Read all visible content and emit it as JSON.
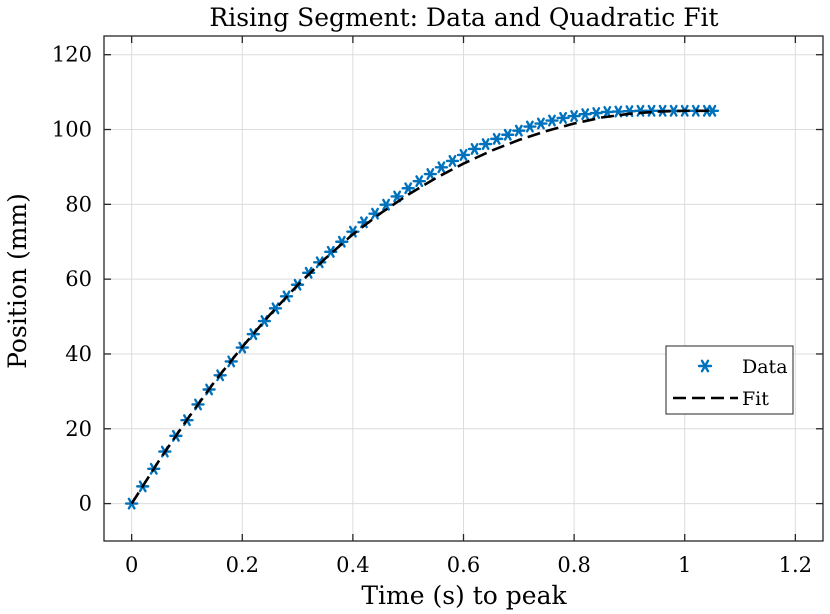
{
  "chart_data": {
    "type": "line",
    "title": "Rising Segment: Data and Quadratic Fit",
    "xlabel": "Time (s) to peak",
    "ylabel": "Position (mm)",
    "xlim": [
      -0.05,
      1.25
    ],
    "ylim": [
      -10,
      125
    ],
    "xticks": [
      0,
      0.2,
      0.4,
      0.6,
      0.8,
      1,
      1.2
    ],
    "xtick_labels": [
      "0",
      "0.2",
      "0.4",
      "0.6",
      "0.8",
      "1",
      "1.2"
    ],
    "yticks": [
      0,
      20,
      40,
      60,
      80,
      100,
      120
    ],
    "ytick_labels": [
      "0",
      "20",
      "40",
      "60",
      "80",
      "100",
      "120"
    ],
    "grid": true,
    "legend_position": "right",
    "series": [
      {
        "name": "Data",
        "style": "asterisk-markers",
        "color": "#0072BD",
        "x": [
          0.0,
          0.02,
          0.04,
          0.06,
          0.08,
          0.1,
          0.12,
          0.14,
          0.16,
          0.18,
          0.2,
          0.22,
          0.24,
          0.26,
          0.28,
          0.3,
          0.32,
          0.34,
          0.36,
          0.38,
          0.4,
          0.42,
          0.44,
          0.46,
          0.48,
          0.5,
          0.52,
          0.54,
          0.56,
          0.58,
          0.6,
          0.62,
          0.64,
          0.66,
          0.68,
          0.7,
          0.72,
          0.74,
          0.76,
          0.78,
          0.8,
          0.82,
          0.84,
          0.86,
          0.88,
          0.9,
          0.92,
          0.94,
          0.96,
          0.98,
          1.0,
          1.02,
          1.04,
          1.05
        ],
        "y": [
          0.0,
          4.6,
          9.3,
          13.9,
          18.1,
          22.3,
          26.5,
          30.5,
          34.3,
          38.0,
          41.7,
          45.3,
          48.8,
          52.2,
          55.4,
          58.5,
          61.7,
          64.5,
          67.3,
          70.0,
          72.7,
          75.2,
          77.5,
          79.9,
          82.1,
          84.3,
          86.2,
          88.1,
          89.9,
          91.6,
          93.2,
          94.8,
          96.1,
          97.5,
          98.6,
          99.7,
          100.8,
          101.6,
          102.4,
          103.1,
          103.6,
          104.1,
          104.4,
          104.7,
          104.8,
          104.9,
          105.0,
          105.0,
          105.0,
          105.0,
          105.0,
          105.0,
          105.0,
          105.0
        ]
      },
      {
        "name": "Fit",
        "style": "dashed-line",
        "color": "#000000",
        "x": [
          0.0,
          0.05,
          0.1,
          0.15,
          0.2,
          0.25,
          0.3,
          0.35,
          0.4,
          0.45,
          0.5,
          0.55,
          0.6,
          0.65,
          0.7,
          0.75,
          0.8,
          0.85,
          0.9,
          0.95,
          1.0,
          1.05
        ],
        "y": [
          0.0,
          11.6,
          22.4,
          32.6,
          41.9,
          50.5,
          58.4,
          65.5,
          72.0,
          77.6,
          82.6,
          87.0,
          90.9,
          94.3,
          97.2,
          99.6,
          101.6,
          103.2,
          104.2,
          104.8,
          105.0,
          105.0
        ]
      }
    ]
  }
}
